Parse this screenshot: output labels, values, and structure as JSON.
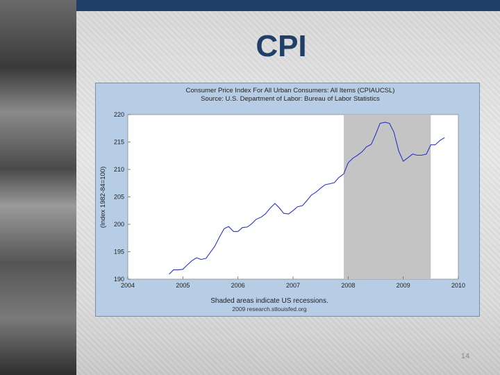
{
  "slide": {
    "title": "CPI",
    "page_number": "14"
  },
  "colors": {
    "title": "#1f3f68",
    "panel": "#b7cde6",
    "plot": "#ffffff",
    "recession": "#c4c4c4",
    "line": "#2a33c9"
  },
  "chart_data": {
    "type": "line",
    "title": "Consumer Price Index For All Urban Consumers: All Items (CPIAUCSL)",
    "subtitle": "Source: U.S. Department of Labor: Bureau of Labor Statistics",
    "xlabel": "Shaded areas indicate US recessions.",
    "credit": "2009 research.stlouisfed.org",
    "ylabel": "(Index 1982-84=100)",
    "xlim": [
      2004,
      2010
    ],
    "ylim": [
      190,
      220
    ],
    "x_ticks": [
      2004,
      2005,
      2006,
      2007,
      2008,
      2009,
      2010
    ],
    "y_ticks": [
      190,
      195,
      200,
      205,
      210,
      215,
      220
    ],
    "grid": false,
    "recessions": [
      {
        "start": 2007.92,
        "end": 2009.5
      }
    ],
    "series": [
      {
        "x": [
          2004.75,
          2004.83,
          2004.92,
          2005.0,
          2005.08,
          2005.17,
          2005.25,
          2005.33,
          2005.42,
          2005.5,
          2005.58,
          2005.67,
          2005.75,
          2005.83,
          2005.92,
          2006.0,
          2006.08,
          2006.17,
          2006.25,
          2006.33,
          2006.42,
          2006.5,
          2006.58,
          2006.67,
          2006.75,
          2006.83,
          2006.92,
          2007.0,
          2007.08,
          2007.17,
          2007.25,
          2007.33,
          2007.42,
          2007.5,
          2007.58,
          2007.67,
          2007.75,
          2007.83,
          2007.92,
          2008.0,
          2008.08,
          2008.17,
          2008.25,
          2008.33,
          2008.42,
          2008.5,
          2008.58,
          2008.67,
          2008.75,
          2008.83,
          2008.92,
          2009.0,
          2009.08,
          2009.17,
          2009.25,
          2009.33,
          2009.42,
          2009.5,
          2009.58,
          2009.67,
          2009.75
        ],
        "values": [
          190.9,
          191.7,
          191.7,
          191.8,
          192.6,
          193.4,
          193.9,
          193.6,
          193.8,
          194.9,
          196.0,
          197.8,
          199.2,
          199.6,
          198.7,
          198.7,
          199.4,
          199.5,
          200.1,
          200.9,
          201.3,
          201.9,
          202.9,
          203.8,
          203.0,
          202.0,
          201.9,
          202.5,
          203.2,
          203.4,
          204.3,
          205.3,
          205.9,
          206.6,
          207.2,
          207.4,
          207.6,
          208.5,
          209.2,
          211.2,
          212.0,
          212.6,
          213.2,
          214.1,
          214.6,
          216.4,
          218.4,
          218.6,
          218.4,
          216.8,
          213.3,
          211.5,
          212.1,
          212.8,
          212.6,
          212.6,
          212.8,
          214.5,
          214.5,
          215.3,
          215.8
        ]
      }
    ]
  }
}
